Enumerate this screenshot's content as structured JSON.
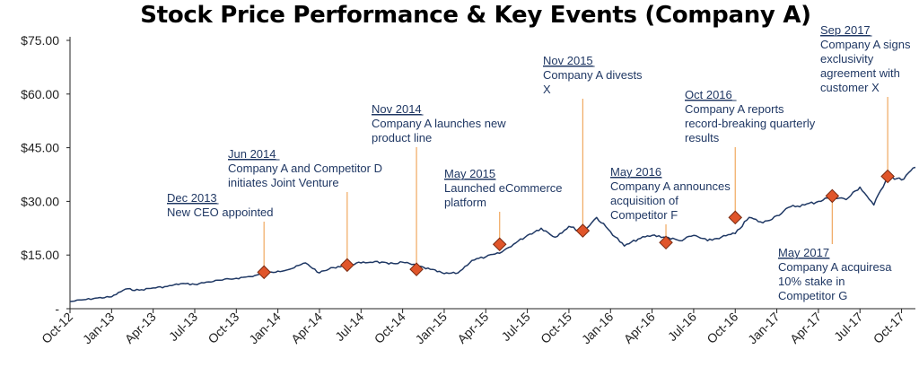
{
  "chart_data": {
    "type": "line",
    "title": "Stock Price Performance & Key Events (Company A)",
    "xlabel": "",
    "ylabel": "",
    "yticks": [
      "-",
      "$15.00",
      "$30.00",
      "$45.00",
      "$60.00",
      "$75.00"
    ],
    "ylim": [
      0,
      75
    ],
    "xticks": [
      "Oct-12",
      "Jan-13",
      "Apr-13",
      "Jul-13",
      "Oct-13",
      "Jan-14",
      "Apr-14",
      "Jul-14",
      "Oct-14",
      "Jan-15",
      "Apr-15",
      "Jul-15",
      "Oct-15",
      "Jan-16",
      "Apr-16",
      "Jul-16",
      "Oct-16",
      "Jan-17",
      "Apr-17",
      "Jul-17",
      "Oct-17"
    ],
    "series": [
      {
        "x": [
          "2012-10",
          "2012-11",
          "2012-12",
          "2013-01",
          "2013-02",
          "2013-03",
          "2013-04",
          "2013-05",
          "2013-06",
          "2013-07",
          "2013-08",
          "2013-09",
          "2013-10",
          "2013-11",
          "2013-12",
          "2014-01",
          "2014-02",
          "2014-03",
          "2014-04",
          "2014-05",
          "2014-06",
          "2014-07",
          "2014-08",
          "2014-09",
          "2014-10",
          "2014-11",
          "2014-12",
          "2015-01",
          "2015-02",
          "2015-03",
          "2015-04",
          "2015-05",
          "2015-06",
          "2015-07",
          "2015-08",
          "2015-09",
          "2015-10",
          "2015-11",
          "2015-12",
          "2016-01",
          "2016-02",
          "2016-03",
          "2016-04",
          "2016-05",
          "2016-06",
          "2016-07",
          "2016-08",
          "2016-09",
          "2016-10",
          "2016-11",
          "2016-12",
          "2017-01",
          "2017-02",
          "2017-03",
          "2017-04",
          "2017-05",
          "2017-06",
          "2017-07",
          "2017-08",
          "2017-09",
          "2017-10",
          "2017-11"
        ],
        "values": [
          2,
          2.5,
          3,
          3.3,
          5.5,
          5.2,
          5.8,
          6.2,
          7,
          6.8,
          7.5,
          8,
          8.5,
          9,
          9.8,
          10.5,
          11.2,
          12.8,
          10,
          11.5,
          12.3,
          12.8,
          13.2,
          12.5,
          13,
          12,
          11,
          9.8,
          10,
          13.5,
          14.5,
          15.5,
          18,
          20.5,
          22.5,
          20,
          23,
          21.5,
          25.5,
          21.5,
          17.5,
          19.5,
          20.5,
          20,
          19,
          20.5,
          19,
          20,
          21,
          25.5,
          24,
          26,
          28.5,
          29,
          30,
          31.5,
          30.5,
          34,
          29,
          37,
          36,
          39.5
        ]
      }
    ],
    "events": [
      {
        "x": "2013-12",
        "y": 10.2,
        "date": "Dec 2013",
        "lines": [
          "New CEO appointed"
        ]
      },
      {
        "x": "2014-06",
        "y": 12.2,
        "date": "Jun 2014",
        "lines": [
          "Company A and Competitor D",
          "initiates Joint Venture"
        ]
      },
      {
        "x": "2014-11",
        "y": 11.0,
        "date": "Nov 2014",
        "lines": [
          "Company A launches new",
          "product line"
        ]
      },
      {
        "x": "2015-05",
        "y": 18.0,
        "date": "May 2015",
        "lines": [
          "Launched eCommerce",
          "platform"
        ]
      },
      {
        "x": "2015-11",
        "y": 21.8,
        "date": "Nov 2015",
        "lines": [
          "Company A divests",
          "X"
        ]
      },
      {
        "x": "2016-05",
        "y": 18.5,
        "date": "May 2016",
        "lines": [
          "Company A announces",
          "acquisition of",
          "Competitor F"
        ]
      },
      {
        "x": "2016-10",
        "y": 25.5,
        "date": "Oct 2016",
        "lines": [
          "Company A reports",
          "record-breaking quarterly",
          "results"
        ]
      },
      {
        "x": "2017-05",
        "y": 31.5,
        "date": "May 2017",
        "lines": [
          "Company A acquiresa",
          "10% stake in",
          "Competitor G"
        ]
      },
      {
        "x": "2017-09",
        "y": 37.0,
        "date": "Sep 2017",
        "lines": [
          "Company A signs",
          "exclusivity",
          "agreement with",
          "customer X"
        ]
      }
    ],
    "colors": {
      "line": "#1f3864",
      "marker": "#e0552a",
      "marker_stroke": "#7a2a10",
      "connector": "#f0a860",
      "axis": "#222222",
      "annotation": "#203864"
    },
    "grid": false,
    "legend": "none"
  }
}
